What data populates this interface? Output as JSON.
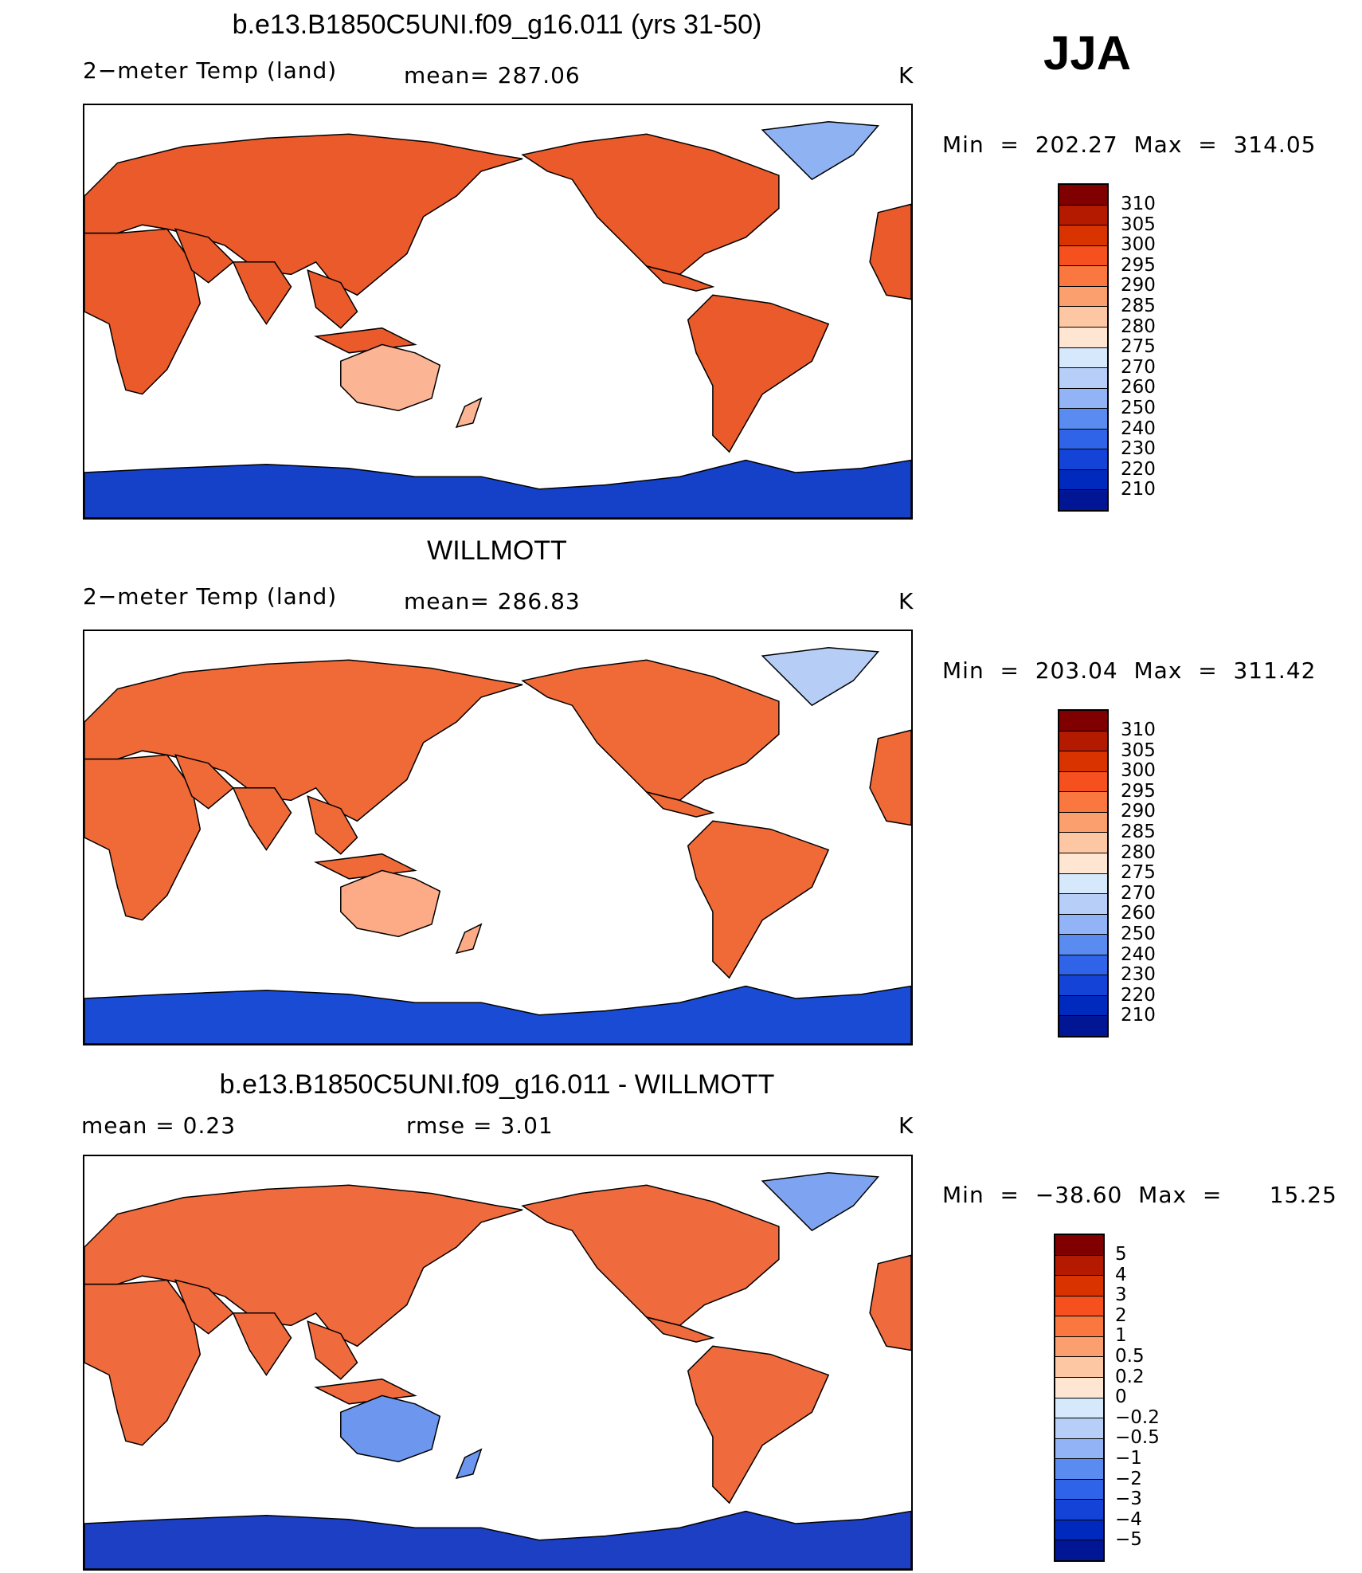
{
  "season": "JJA",
  "panels": [
    {
      "title": "b.e13.B1850C5UNI.f09_g16.011 (yrs 31-50)",
      "left_label": "2−meter Temp (land)",
      "mid_label": "mean=  287.06",
      "units": "K",
      "minmax": "Min  =  202.27  Max  =  314.05",
      "map_mode": "model",
      "colorbar": {
        "colors": [
          "#800000",
          "#b31a00",
          "#d93300",
          "#f5501e",
          "#fa7840",
          "#fc9f6e",
          "#fdc7a3",
          "#fee6d2",
          "#d6e8fb",
          "#b7cff8",
          "#92b3f5",
          "#5a8bf0",
          "#2f64e8",
          "#1443d8",
          "#0029bd",
          "#001694"
        ],
        "labels": [
          "310",
          "305",
          "300",
          "295",
          "290",
          "285",
          "280",
          "275",
          "270",
          "260",
          "250",
          "240",
          "230",
          "220",
          "210"
        ]
      }
    },
    {
      "title": "WILLMOTT",
      "left_label": "2−meter Temp (land)",
      "mid_label": "mean=  286.83",
      "units": "K",
      "minmax": "Min  =  203.04  Max  =  311.42",
      "map_mode": "obs",
      "colorbar": {
        "colors": [
          "#800000",
          "#b31a00",
          "#d93300",
          "#f5501e",
          "#fa7840",
          "#fc9f6e",
          "#fdc7a3",
          "#fee6d2",
          "#d6e8fb",
          "#b7cff8",
          "#92b3f5",
          "#5a8bf0",
          "#2f64e8",
          "#1443d8",
          "#0029bd",
          "#001694"
        ],
        "labels": [
          "310",
          "305",
          "300",
          "295",
          "290",
          "285",
          "280",
          "275",
          "270",
          "260",
          "250",
          "240",
          "230",
          "220",
          "210"
        ]
      }
    },
    {
      "title": "b.e13.B1850C5UNI.f09_g16.011 - WILLMOTT",
      "left_label": "mean =      0.23",
      "mid_label": "rmse =      3.01",
      "units": "K",
      "minmax": "Min  =  −38.60  Max  =      15.25",
      "map_mode": "diff",
      "colorbar": {
        "colors": [
          "#800000",
          "#b31a00",
          "#d93300",
          "#f5501e",
          "#fa7840",
          "#fc9f6e",
          "#fdc7a3",
          "#fee6d2",
          "#d6e8fb",
          "#b7cff8",
          "#92b3f5",
          "#5a8bf0",
          "#2f64e8",
          "#1443d8",
          "#0029bd",
          "#001694"
        ],
        "labels": [
          "5",
          "4",
          "3",
          "2",
          "1",
          "0.5",
          "0.2",
          "0",
          "−0.2",
          "−0.5",
          "−1",
          "−2",
          "−3",
          "−4",
          "−5"
        ]
      }
    }
  ]
}
